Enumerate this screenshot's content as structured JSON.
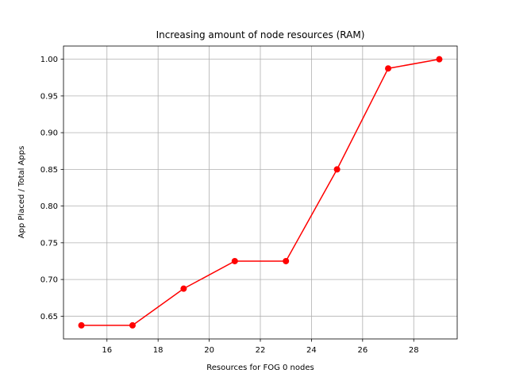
{
  "chart_data": {
    "type": "line",
    "title": "Increasing amount of node resources (RAM)",
    "xlabel": "Resources for FOG 0 nodes",
    "ylabel": "App Placed / Total Apps",
    "x": [
      15,
      17,
      19,
      21,
      23,
      25,
      27,
      29
    ],
    "series": [
      {
        "values": [
          0.6375,
          0.6375,
          0.6875,
          0.725,
          0.725,
          0.85,
          0.9875,
          1.0
        ]
      }
    ],
    "xlim": [
      14.3,
      29.7
    ],
    "ylim": [
      0.619,
      1.018
    ],
    "xticks": [
      16,
      18,
      20,
      22,
      24,
      26,
      28
    ],
    "yticks": [
      0.65,
      0.7,
      0.75,
      0.8,
      0.85,
      0.9,
      0.95,
      1.0
    ],
    "xtick_labels": [
      "16",
      "18",
      "20",
      "22",
      "24",
      "26",
      "28"
    ],
    "ytick_labels": [
      "0.65",
      "0.70",
      "0.75",
      "0.80",
      "0.85",
      "0.90",
      "0.95",
      "1.00"
    ],
    "grid": true,
    "colors": {
      "line": "#ff0000",
      "marker": "#ff0000",
      "grid": "#b0b0b0",
      "axis": "#000000"
    }
  }
}
